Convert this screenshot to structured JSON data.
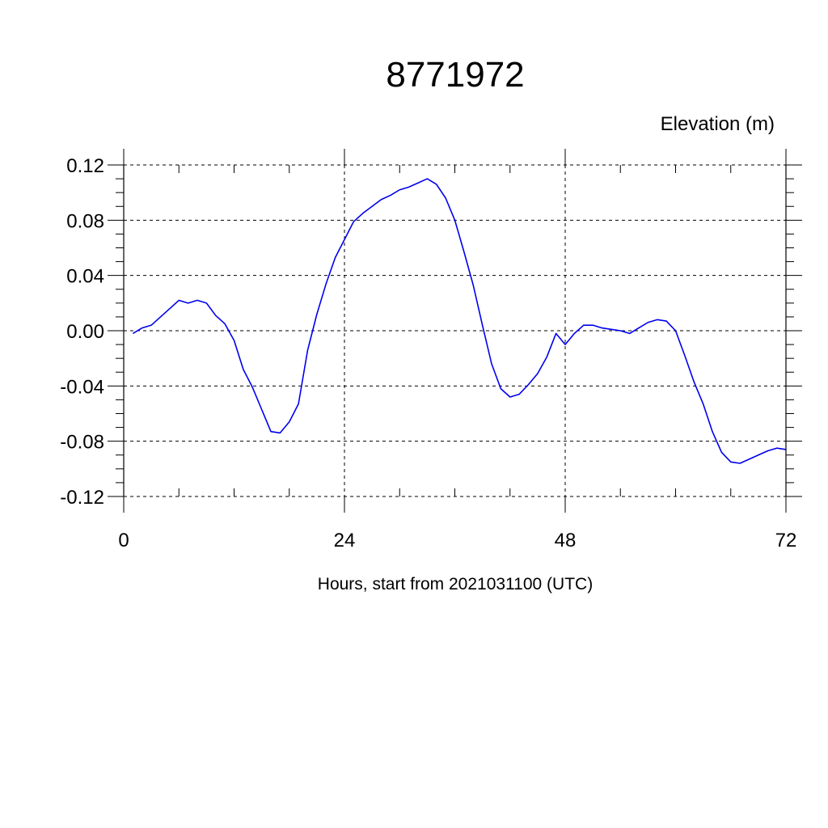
{
  "chart_data": {
    "type": "line",
    "title": "8771972",
    "ylabel": "Elevation (m)",
    "xlabel": "Hours, start from 2021031100 (UTC)",
    "xlim": [
      0,
      72
    ],
    "ylim": [
      -0.12,
      0.12
    ],
    "xticks": [
      0,
      24,
      48,
      72
    ],
    "xtick_labels": [
      "0",
      "24",
      "48",
      "72"
    ],
    "yticks": [
      0.12,
      0.08,
      0.04,
      0.0,
      -0.04,
      -0.08,
      -0.12
    ],
    "ytick_labels": [
      "0.12",
      "0.08",
      "0.04",
      "0.00",
      "-0.04",
      "-0.08",
      "-0.12"
    ],
    "grid": true,
    "series": [
      {
        "color": "#0000ee",
        "x": [
          1,
          2,
          3,
          4,
          5,
          6,
          7,
          8,
          9,
          10,
          11,
          12,
          13,
          14,
          15,
          16,
          17,
          18,
          19,
          20,
          21,
          22,
          23,
          24,
          25,
          26,
          27,
          28,
          29,
          30,
          31,
          32,
          33,
          34,
          35,
          36,
          37,
          38,
          39,
          40,
          41,
          42,
          43,
          44,
          45,
          46,
          47,
          48,
          49,
          50,
          51,
          52,
          53,
          54,
          55,
          56,
          57,
          58,
          59,
          60,
          61,
          62,
          63,
          64,
          65,
          66,
          67,
          68,
          69,
          70,
          71,
          72
        ],
        "y": [
          -0.002,
          0.002,
          0.004,
          0.01,
          0.016,
          0.022,
          0.02,
          0.022,
          0.02,
          0.011,
          0.005,
          -0.007,
          -0.028,
          -0.041,
          -0.057,
          -0.073,
          -0.074,
          -0.066,
          -0.053,
          -0.014,
          0.012,
          0.034,
          0.053,
          0.066,
          0.079,
          0.085,
          0.09,
          0.095,
          0.098,
          0.102,
          0.104,
          0.107,
          0.11,
          0.106,
          0.096,
          0.08,
          0.057,
          0.033,
          0.004,
          -0.024,
          -0.042,
          -0.048,
          -0.046,
          -0.039,
          -0.031,
          -0.019,
          -0.002,
          -0.01,
          -0.002,
          0.004,
          0.004,
          0.002,
          0.001,
          0.0,
          -0.002,
          0.002,
          0.006,
          0.008,
          0.007,
          0.0,
          -0.018,
          -0.037,
          -0.053,
          -0.073,
          -0.088,
          -0.095,
          -0.096,
          -0.093,
          -0.09,
          -0.087,
          -0.085,
          -0.086
        ]
      }
    ]
  }
}
